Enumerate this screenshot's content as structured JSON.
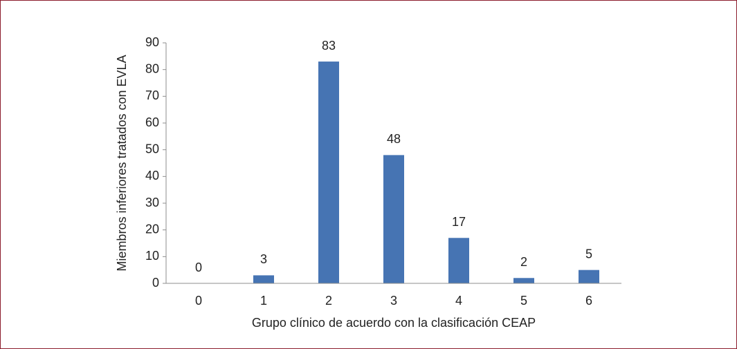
{
  "chart_data": {
    "type": "bar",
    "x_label": "Grupo clínico de acuerdo con la clasificación CEAP",
    "y_label": "Miembros inferiores tratados con EVLA",
    "categories": [
      "0",
      "1",
      "2",
      "3",
      "4",
      "5",
      "6"
    ],
    "values": [
      0,
      3,
      83,
      48,
      17,
      2,
      5
    ],
    "color": "#4674b3",
    "ylim": [
      0,
      90
    ],
    "yticks": [
      0,
      10,
      20,
      30,
      40,
      50,
      60,
      70,
      80,
      90
    ],
    "grid": false
  }
}
